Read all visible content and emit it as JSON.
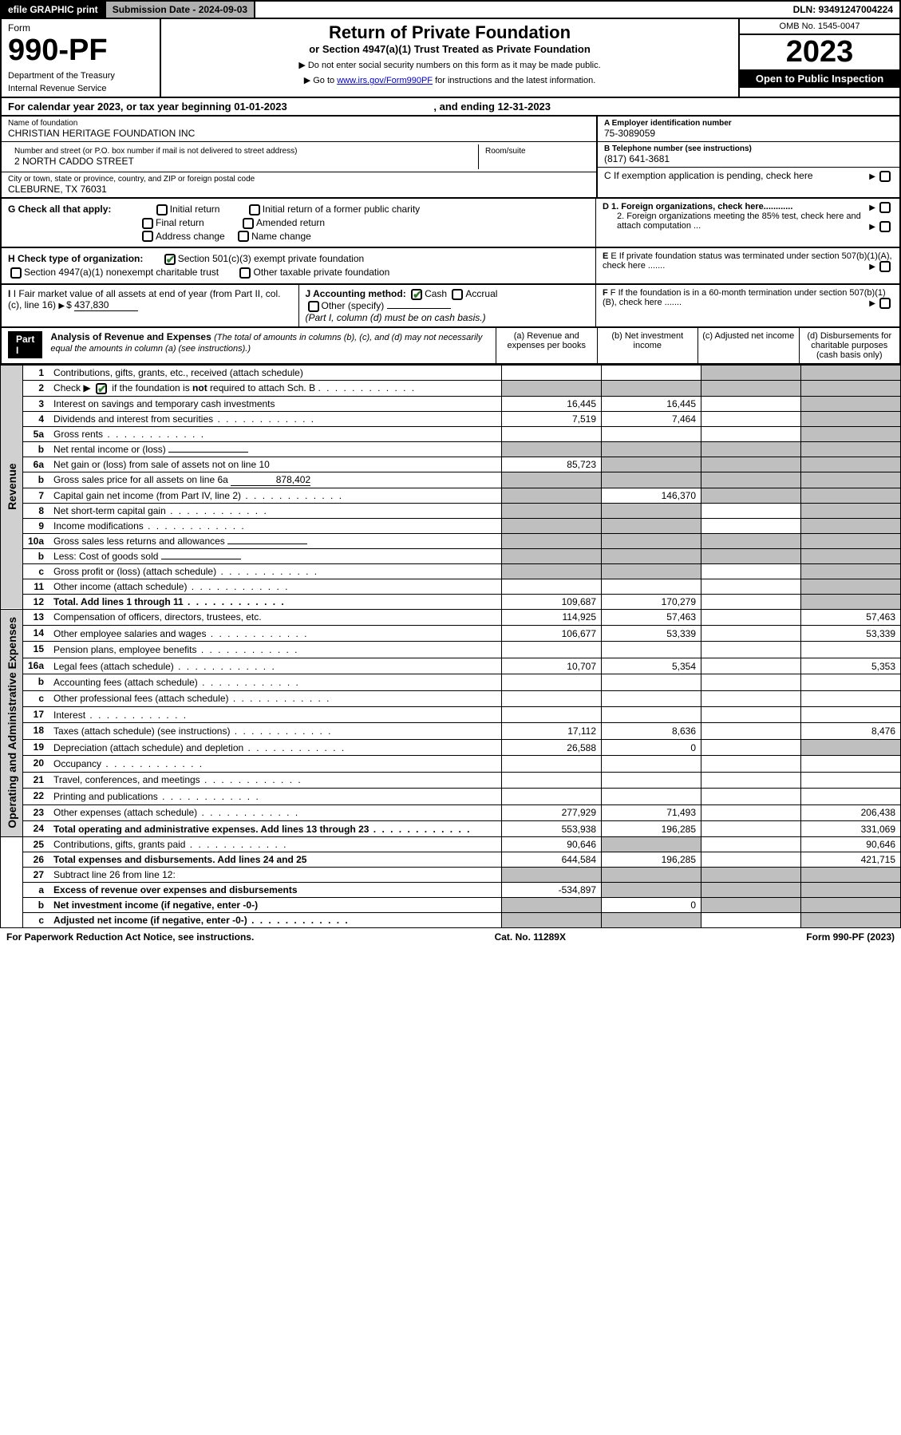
{
  "topbar": {
    "efile": "efile GRAPHIC print",
    "subdate_label": "Submission Date - 2024-09-03",
    "dln": "DLN: 93491247004224"
  },
  "header": {
    "form_label": "Form",
    "form_no": "990-PF",
    "dept": "Department of the Treasury",
    "irs": "Internal Revenue Service",
    "title": "Return of Private Foundation",
    "subtitle": "or Section 4947(a)(1) Trust Treated as Private Foundation",
    "note1": "▶ Do not enter social security numbers on this form as it may be made public.",
    "note2_pre": "▶ Go to ",
    "note2_link": "www.irs.gov/Form990PF",
    "note2_post": " for instructions and the latest information.",
    "omb": "OMB No. 1545-0047",
    "year": "2023",
    "open": "Open to Public Inspection"
  },
  "caly": {
    "text_pre": "For calendar year 2023, or tax year beginning 01-01-2023",
    "text_mid": ", and ending 12-31-2023"
  },
  "info": {
    "name_lbl": "Name of foundation",
    "name_val": "CHRISTIAN HERITAGE FOUNDATION INC",
    "addr_lbl": "Number and street (or P.O. box number if mail is not delivered to street address)",
    "addr_val": "2 NORTH CADDO STREET",
    "room_lbl": "Room/suite",
    "city_lbl": "City or town, state or province, country, and ZIP or foreign postal code",
    "city_val": "CLEBURNE, TX  76031",
    "ein_lbl": "A Employer identification number",
    "ein_val": "75-3089059",
    "phone_lbl": "B Telephone number (see instructions)",
    "phone_val": "(817) 641-3681",
    "c_lbl": "C If exemption application is pending, check here",
    "d1_lbl": "D 1. Foreign organizations, check here............",
    "d2_lbl": "2. Foreign organizations meeting the 85% test, check here and attach computation ...",
    "e_lbl": "E If private foundation status was terminated under section 507(b)(1)(A), check here .......",
    "f_lbl": "F If the foundation is in a 60-month termination under section 507(b)(1)(B), check here .......",
    "g_lbl": "G Check all that apply:",
    "g_opts": [
      "Initial return",
      "Initial return of a former public charity",
      "Final return",
      "Amended return",
      "Address change",
      "Name change"
    ],
    "h_lbl": "H Check type of organization:",
    "h_opt1": "Section 501(c)(3) exempt private foundation",
    "h_opt2": "Section 4947(a)(1) nonexempt charitable trust",
    "h_opt3": "Other taxable private foundation",
    "i_lbl": "I Fair market value of all assets at end of year (from Part II, col. (c), line 16)",
    "i_val": "437,830",
    "j_lbl": "J Accounting method:",
    "j_opt1": "Cash",
    "j_opt2": "Accrual",
    "j_opt3": "Other (specify)",
    "j_note": "(Part I, column (d) must be on cash basis.)"
  },
  "part1": {
    "label": "Part I",
    "title": "Analysis of Revenue and Expenses",
    "desc": "(The total of amounts in columns (b), (c), and (d) may not necessarily equal the amounts in column (a) (see instructions).)",
    "col_a": "(a)   Revenue and expenses per books",
    "col_b": "(b)   Net investment income",
    "col_c": "(c)   Adjusted net income",
    "col_d": "(d)   Disbursements for charitable purposes (cash basis only)"
  },
  "side_labels": {
    "rev": "Revenue",
    "exp": "Operating and Administrative Expenses"
  },
  "rows": [
    {
      "n": "1",
      "d": "Contributions, gifts, grants, etc., received (attach schedule)",
      "a": "",
      "b": "",
      "c": "shade",
      "dd": "shade"
    },
    {
      "n": "2",
      "d": "Check ▶ ☑ if the foundation is not required to attach Sch. B",
      "a": "shade",
      "b": "shade",
      "c": "shade",
      "dd": "shade",
      "dots": true,
      "nothtml": true
    },
    {
      "n": "3",
      "d": "Interest on savings and temporary cash investments",
      "a": "16,445",
      "b": "16,445",
      "c": "",
      "dd": "shade"
    },
    {
      "n": "4",
      "d": "Dividends and interest from securities",
      "a": "7,519",
      "b": "7,464",
      "c": "",
      "dd": "shade",
      "dots": true
    },
    {
      "n": "5a",
      "d": "Gross rents",
      "a": "",
      "b": "",
      "c": "",
      "dd": "shade",
      "dots": true
    },
    {
      "n": "b",
      "d": "Net rental income or (loss)",
      "a": "shade",
      "b": "shade",
      "c": "shade",
      "dd": "shade",
      "inline": ""
    },
    {
      "n": "6a",
      "d": "Net gain or (loss) from sale of assets not on line 10",
      "a": "85,723",
      "b": "shade",
      "c": "shade",
      "dd": "shade"
    },
    {
      "n": "b",
      "d": "Gross sales price for all assets on line 6a",
      "a": "shade",
      "b": "shade",
      "c": "shade",
      "dd": "shade",
      "inline": "878,402"
    },
    {
      "n": "7",
      "d": "Capital gain net income (from Part IV, line 2)",
      "a": "shade",
      "b": "146,370",
      "c": "shade",
      "dd": "shade",
      "dots": true
    },
    {
      "n": "8",
      "d": "Net short-term capital gain",
      "a": "shade",
      "b": "shade",
      "c": "",
      "dd": "shade",
      "dots": true
    },
    {
      "n": "9",
      "d": "Income modifications",
      "a": "shade",
      "b": "shade",
      "c": "",
      "dd": "shade",
      "dots": true
    },
    {
      "n": "10a",
      "d": "Gross sales less returns and allowances",
      "a": "shade",
      "b": "shade",
      "c": "shade",
      "dd": "shade",
      "inline": ""
    },
    {
      "n": "b",
      "d": "Less: Cost of goods sold",
      "a": "shade",
      "b": "shade",
      "c": "shade",
      "dd": "shade",
      "dots": true,
      "inline": ""
    },
    {
      "n": "c",
      "d": "Gross profit or (loss) (attach schedule)",
      "a": "shade",
      "b": "shade",
      "c": "",
      "dd": "shade",
      "dots": true
    },
    {
      "n": "11",
      "d": "Other income (attach schedule)",
      "a": "",
      "b": "",
      "c": "",
      "dd": "shade",
      "dots": true
    },
    {
      "n": "12",
      "d": "Total. Add lines 1 through 11",
      "a": "109,687",
      "b": "170,279",
      "c": "",
      "dd": "shade",
      "bold": true,
      "dots": true
    },
    {
      "n": "13",
      "d": "Compensation of officers, directors, trustees, etc.",
      "a": "114,925",
      "b": "57,463",
      "c": "",
      "dd": "57,463"
    },
    {
      "n": "14",
      "d": "Other employee salaries and wages",
      "a": "106,677",
      "b": "53,339",
      "c": "",
      "dd": "53,339",
      "dots": true
    },
    {
      "n": "15",
      "d": "Pension plans, employee benefits",
      "a": "",
      "b": "",
      "c": "",
      "dd": "",
      "dots": true
    },
    {
      "n": "16a",
      "d": "Legal fees (attach schedule)",
      "a": "10,707",
      "b": "5,354",
      "c": "",
      "dd": "5,353",
      "dots": true
    },
    {
      "n": "b",
      "d": "Accounting fees (attach schedule)",
      "a": "",
      "b": "",
      "c": "",
      "dd": "",
      "dots": true
    },
    {
      "n": "c",
      "d": "Other professional fees (attach schedule)",
      "a": "",
      "b": "",
      "c": "",
      "dd": "",
      "dots": true
    },
    {
      "n": "17",
      "d": "Interest",
      "a": "",
      "b": "",
      "c": "",
      "dd": "",
      "dots": true
    },
    {
      "n": "18",
      "d": "Taxes (attach schedule) (see instructions)",
      "a": "17,112",
      "b": "8,636",
      "c": "",
      "dd": "8,476",
      "dots": true
    },
    {
      "n": "19",
      "d": "Depreciation (attach schedule) and depletion",
      "a": "26,588",
      "b": "0",
      "c": "",
      "dd": "shade",
      "dots": true
    },
    {
      "n": "20",
      "d": "Occupancy",
      "a": "",
      "b": "",
      "c": "",
      "dd": "",
      "dots": true
    },
    {
      "n": "21",
      "d": "Travel, conferences, and meetings",
      "a": "",
      "b": "",
      "c": "",
      "dd": "",
      "dots": true
    },
    {
      "n": "22",
      "d": "Printing and publications",
      "a": "",
      "b": "",
      "c": "",
      "dd": "",
      "dots": true
    },
    {
      "n": "23",
      "d": "Other expenses (attach schedule)",
      "a": "277,929",
      "b": "71,493",
      "c": "",
      "dd": "206,438",
      "dots": true
    },
    {
      "n": "24",
      "d": "Total operating and administrative expenses. Add lines 13 through 23",
      "a": "553,938",
      "b": "196,285",
      "c": "",
      "dd": "331,069",
      "bold": true,
      "dots": true
    },
    {
      "n": "25",
      "d": "Contributions, gifts, grants paid",
      "a": "90,646",
      "b": "shade",
      "c": "",
      "dd": "90,646",
      "dots": true
    },
    {
      "n": "26",
      "d": "Total expenses and disbursements. Add lines 24 and 25",
      "a": "644,584",
      "b": "196,285",
      "c": "",
      "dd": "421,715",
      "bold": true
    },
    {
      "n": "27",
      "d": "Subtract line 26 from line 12:",
      "a": "shade",
      "b": "shade",
      "c": "shade",
      "dd": "shade"
    },
    {
      "n": "a",
      "d": "Excess of revenue over expenses and disbursements",
      "a": "-534,897",
      "b": "shade",
      "c": "shade",
      "dd": "shade",
      "bold": true
    },
    {
      "n": "b",
      "d": "Net investment income (if negative, enter -0-)",
      "a": "shade",
      "b": "0",
      "c": "shade",
      "dd": "shade",
      "bold": true
    },
    {
      "n": "c",
      "d": "Adjusted net income (if negative, enter -0-)",
      "a": "shade",
      "b": "shade",
      "c": "",
      "dd": "shade",
      "bold": true,
      "dots": true
    }
  ],
  "footer": {
    "left": "For Paperwork Reduction Act Notice, see instructions.",
    "mid": "Cat. No. 11289X",
    "right": "Form 990-PF (2023)"
  },
  "colors": {
    "shade": "#bfbfbf",
    "link": "#0000cc",
    "check": "#2a7a2a"
  }
}
